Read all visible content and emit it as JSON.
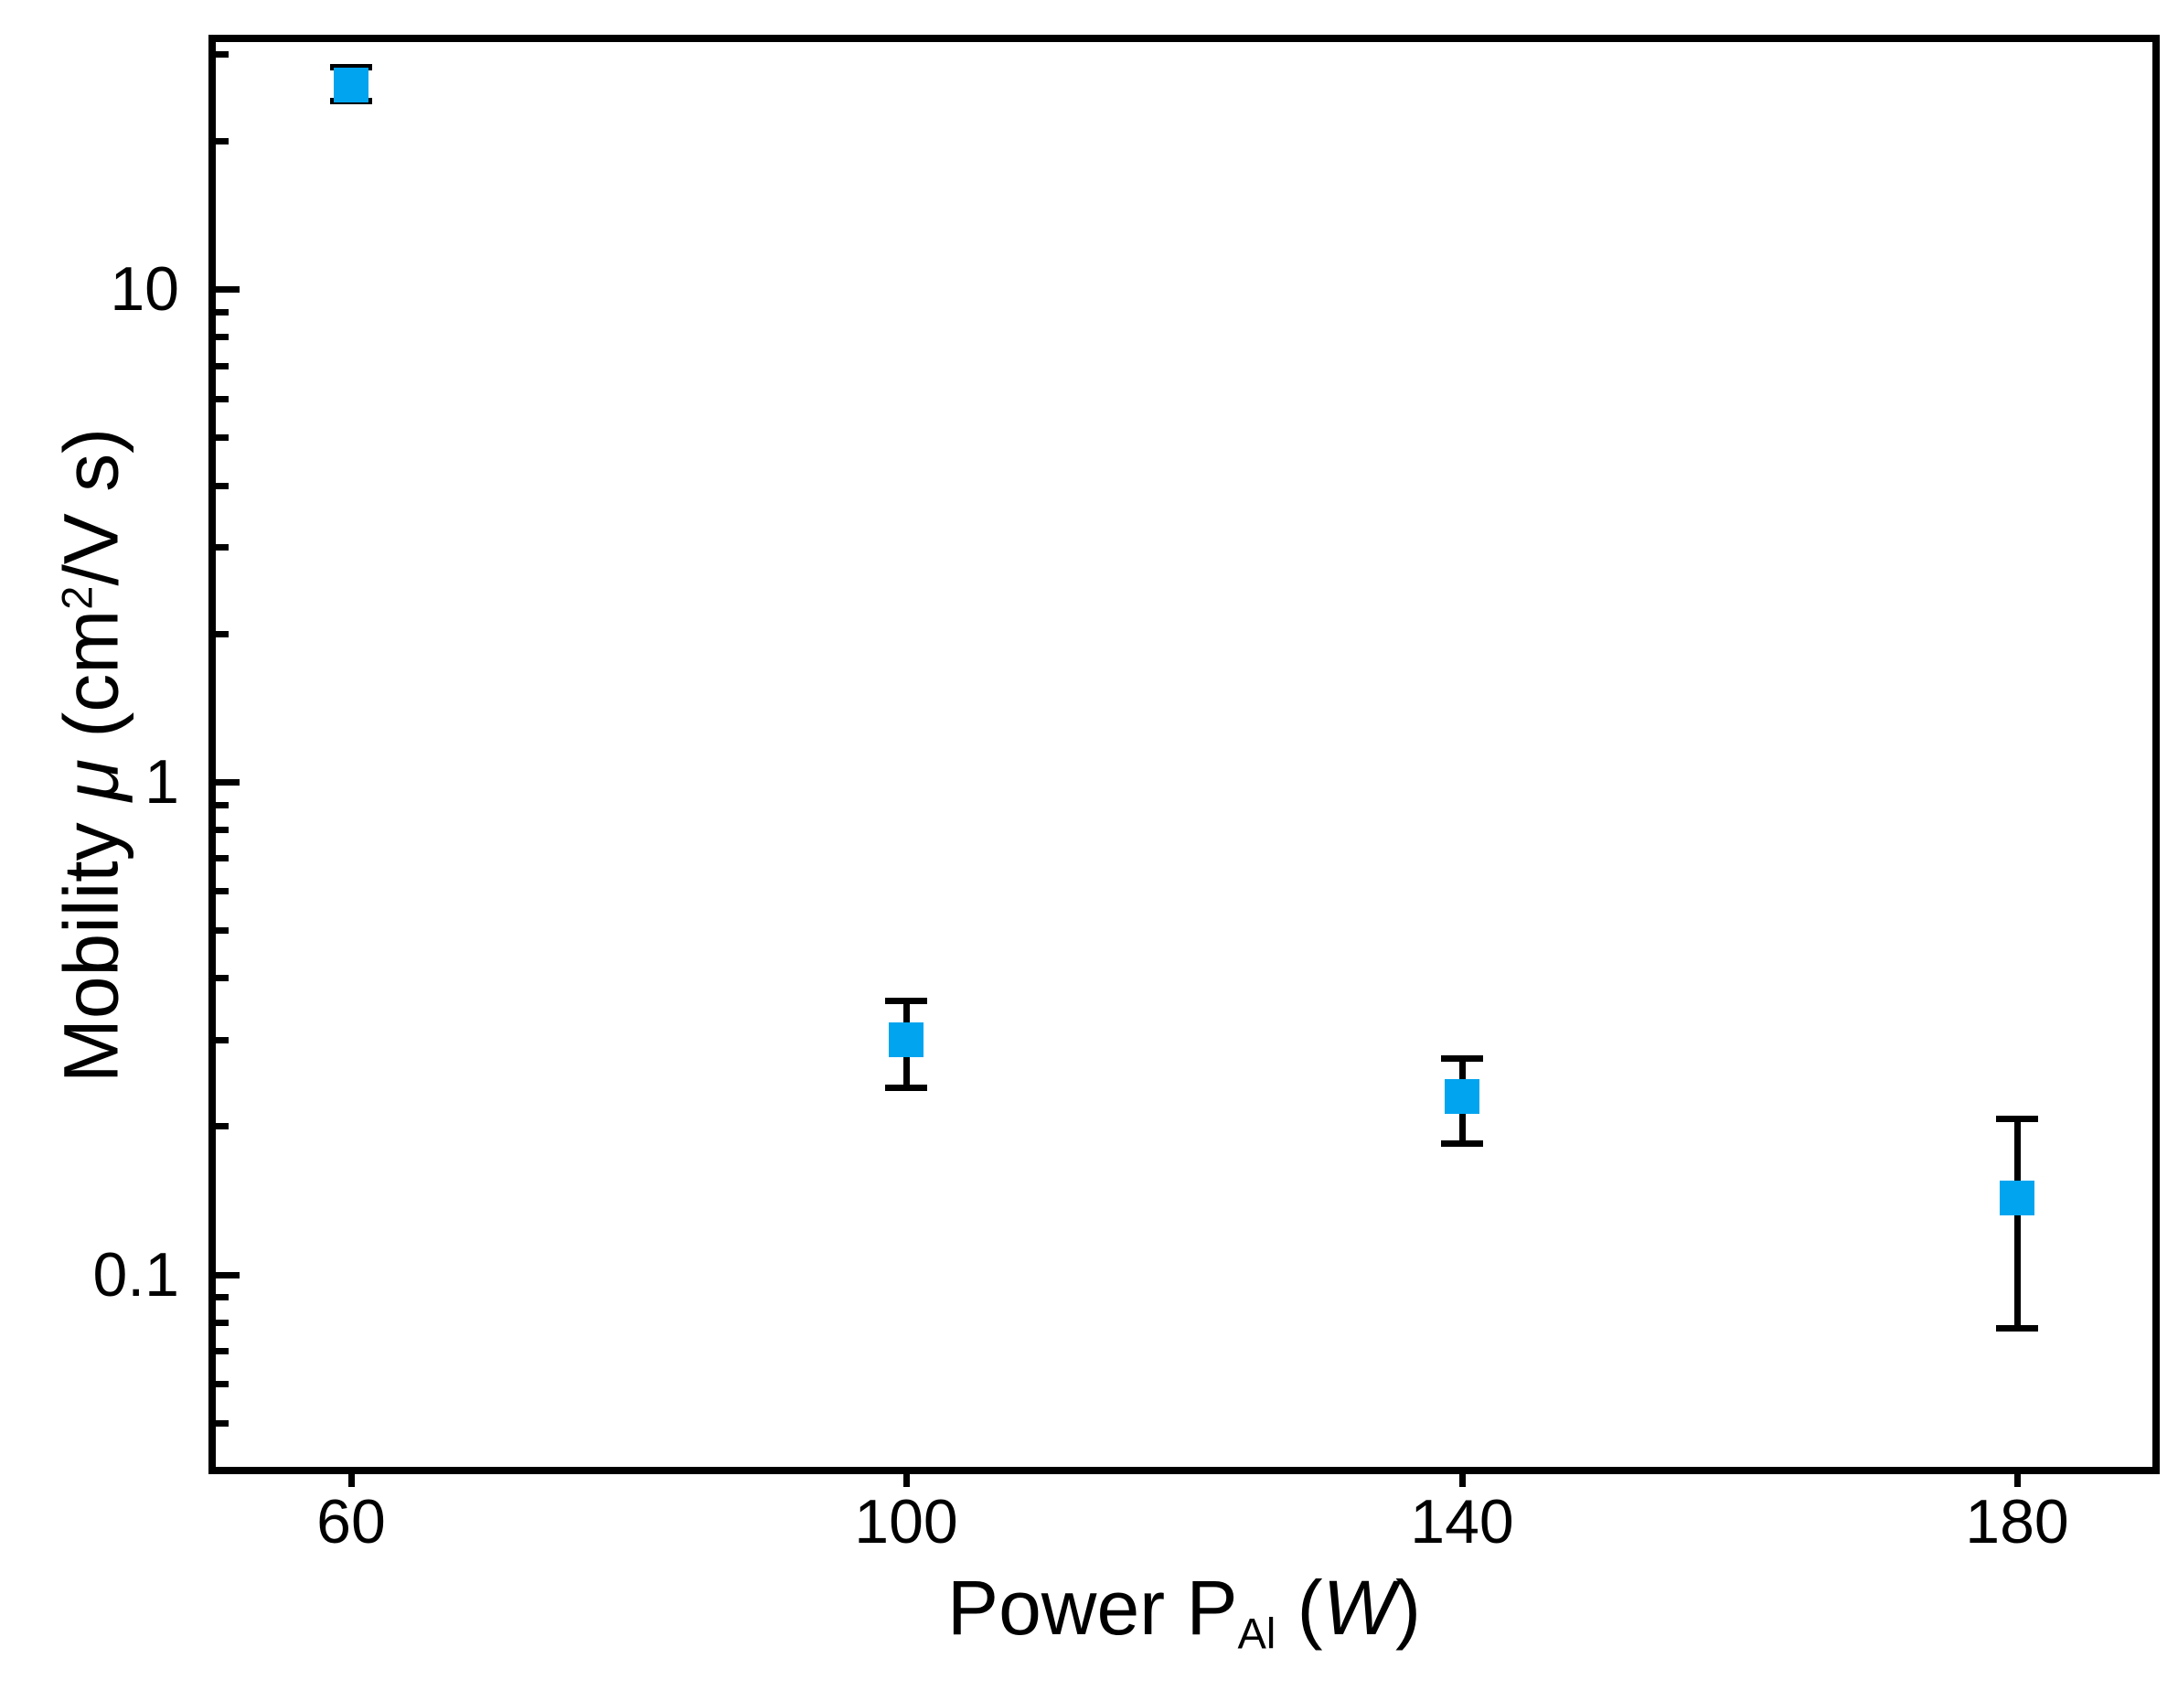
{
  "figure": {
    "background": "#ffffff",
    "frame_color": "#000000"
  },
  "chart_data": {
    "type": "scatter",
    "title": "",
    "xlabel": "Power P_Al (W)",
    "ylabel": "Mobility μ (cm²/V s)",
    "xlabel_parts": {
      "prefix": "Power P",
      "subscript": "Al",
      "mid": " (",
      "unit": "W",
      "end": ")"
    },
    "ylabel_parts": {
      "prefix": "Mobility ",
      "mu": "μ",
      "mid": " (cm",
      "sup": "2",
      "end": "/V s)"
    },
    "legend": "none",
    "grid": "off",
    "x_axis": {
      "scale": "linear",
      "min": 50,
      "max": 190,
      "major_ticks": [
        60,
        100,
        140,
        180
      ],
      "tick_labels": [
        "60",
        "100",
        "140",
        "180"
      ]
    },
    "y_axis": {
      "scale": "log",
      "min": 0.04,
      "max": 32.3,
      "major_ticks": [
        10,
        1,
        0.1
      ],
      "tick_labels": [
        "10",
        "1",
        "0.1"
      ],
      "minor_ticks": [
        30,
        20,
        9,
        8,
        7,
        6,
        5,
        4,
        3,
        2,
        0.9,
        0.8,
        0.7,
        0.6,
        0.5,
        0.4,
        0.3,
        0.2,
        0.09,
        0.08,
        0.07,
        0.06,
        0.05
      ]
    },
    "series": [
      {
        "name": "mobility-vs-power",
        "marker": "square",
        "marker_color": "#00A4EF",
        "error_bar_color": "#000000",
        "points": [
          {
            "x": 60,
            "y": 26,
            "y_err_plus": 2.3,
            "y_err_minus": 1.8
          },
          {
            "x": 100,
            "y": 0.3,
            "y_err_plus": 0.06,
            "y_err_minus": 0.06
          },
          {
            "x": 140,
            "y": 0.23,
            "y_err_plus": 0.045,
            "y_err_minus": 0.045
          },
          {
            "x": 180,
            "y": 0.143,
            "y_err_plus": 0.064,
            "y_err_minus": 0.065
          }
        ]
      }
    ]
  }
}
